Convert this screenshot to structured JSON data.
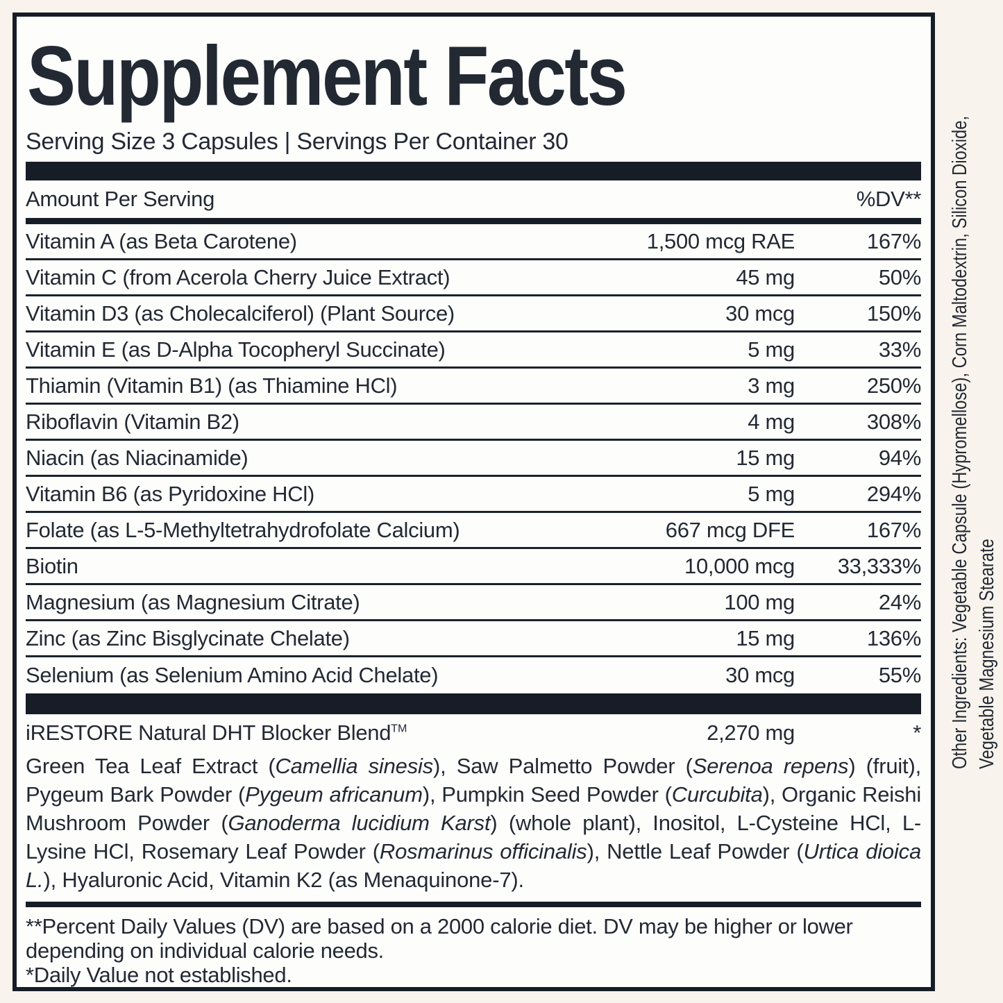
{
  "colors": {
    "ink": "#232933",
    "bar": "#161d26",
    "rule": "#1c222b",
    "label_bg": "#fdfdfc",
    "page_bg": "#f8f4ed"
  },
  "title": "Supplement Facts",
  "serving_line": "Serving Size 3 Capsules | Servings Per Container 30",
  "header": {
    "amount_label": "Amount Per Serving",
    "dv_label": "%DV**"
  },
  "nutrients": [
    {
      "name": "Vitamin A (as Beta Carotene)",
      "amount": "1,500 mcg RAE",
      "dv": "167%"
    },
    {
      "name": "Vitamin C (from Acerola Cherry Juice Extract)",
      "amount": "45 mg",
      "dv": "50%"
    },
    {
      "name": "Vitamin D3 (as Cholecalciferol) (Plant Source)",
      "amount": "30 mcg",
      "dv": "150%"
    },
    {
      "name": "Vitamin E (as D-Alpha Tocopheryl Succinate)",
      "amount": "5 mg",
      "dv": "33%"
    },
    {
      "name": "Thiamin (Vitamin B1) (as Thiamine HCl)",
      "amount": "3 mg",
      "dv": "250%"
    },
    {
      "name": "Riboflavin (Vitamin B2)",
      "amount": "4 mg",
      "dv": "308%"
    },
    {
      "name": "Niacin (as Niacinamide)",
      "amount": "15 mg",
      "dv": "94%"
    },
    {
      "name": "Vitamin B6 (as Pyridoxine HCl)",
      "amount": "5 mg",
      "dv": "294%"
    },
    {
      "name": "Folate (as L-5-Methyltetrahydrofolate Calcium)",
      "amount": "667 mcg DFE",
      "dv": "167%"
    },
    {
      "name": "Biotin",
      "amount": "10,000 mcg",
      "dv": "33,333%"
    },
    {
      "name": "Magnesium (as Magnesium Citrate)",
      "amount": "100 mg",
      "dv": "24%"
    },
    {
      "name": "Zinc (as Zinc Bisglycinate Chelate)",
      "amount": "15 mg",
      "dv": "136%"
    },
    {
      "name": "Selenium (as Selenium Amino Acid Chelate)",
      "amount": "30 mcg",
      "dv": "55%"
    }
  ],
  "blend": {
    "name": "iRESTORE Natural DHT Blocker Blend",
    "tm": "TM",
    "amount": "2,270 mg",
    "dv": "*",
    "description_segments": [
      {
        "text": "Green Tea Leaf Extract (",
        "italic": false
      },
      {
        "text": "Camellia sinesis",
        "italic": true
      },
      {
        "text": "), Saw Palmetto Powder (",
        "italic": false
      },
      {
        "text": "Serenoa repens",
        "italic": true
      },
      {
        "text": ") (fruit), Pygeum Bark Powder (",
        "italic": false
      },
      {
        "text": "Pygeum africanum",
        "italic": true
      },
      {
        "text": "), Pumpkin Seed Powder (",
        "italic": false
      },
      {
        "text": "Curcubita",
        "italic": true
      },
      {
        "text": "), Organic Reishi Mushroom Powder (",
        "italic": false
      },
      {
        "text": "Ganoderma lucidium Karst",
        "italic": true
      },
      {
        "text": ") (whole plant), Inositol, L-Cysteine HCl, L-Lysine HCl, Rosemary Leaf Powder (",
        "italic": false
      },
      {
        "text": "Rosmarinus officinalis",
        "italic": true
      },
      {
        "text": "), Nettle Leaf Powder (",
        "italic": false
      },
      {
        "text": "Urtica dioica L.",
        "italic": true
      },
      {
        "text": "), Hyaluronic Acid, Vitamin K2 (as Menaquinone-7).",
        "italic": false
      }
    ]
  },
  "footnotes": {
    "dv_note": "**Percent Daily Values (DV) are based on a 2000 calorie diet. DV may be higher or lower depending on individual calorie needs.",
    "not_established": "*Daily Value not established."
  },
  "other_ingredients": {
    "line1": "Other Ingredients: Vegetable Capsule (Hypromellose), Corn Maltodextrin, Silicon Dioxide,",
    "line2": "Vegetable Magnesium Stearate"
  }
}
